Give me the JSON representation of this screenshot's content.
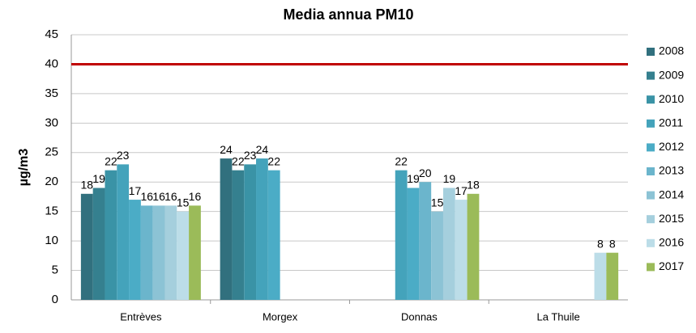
{
  "chart_data": {
    "type": "bar",
    "title": "Media annua PM10",
    "y_label": "µg/m3",
    "categories": [
      "Entrèves",
      "Morgex",
      "Donnas",
      "La Thuile"
    ],
    "series": [
      {
        "name": "2008",
        "color": "#31707e",
        "values": [
          18,
          24,
          null,
          null
        ]
      },
      {
        "name": "2009",
        "color": "#35808f",
        "values": [
          19,
          22,
          null,
          null
        ]
      },
      {
        "name": "2010",
        "color": "#3a93a6",
        "values": [
          22,
          23,
          null,
          null
        ]
      },
      {
        "name": "2011",
        "color": "#44a3bb",
        "values": [
          23,
          24,
          22,
          null
        ]
      },
      {
        "name": "2012",
        "color": "#4bacc6",
        "values": [
          17,
          22,
          19,
          null
        ]
      },
      {
        "name": "2013",
        "color": "#6bb5cc",
        "values": [
          16,
          null,
          20,
          null
        ]
      },
      {
        "name": "2014",
        "color": "#8cc3d5",
        "values": [
          16,
          null,
          15,
          null
        ]
      },
      {
        "name": "2015",
        "color": "#a5cfdd",
        "values": [
          16,
          null,
          19,
          null
        ]
      },
      {
        "name": "2016",
        "color": "#bcdde8",
        "values": [
          15,
          null,
          17,
          8
        ]
      },
      {
        "name": "2017",
        "color": "#9bbb59",
        "values": [
          16,
          null,
          18,
          8
        ]
      }
    ],
    "threshold": 40,
    "threshold_color": "#c00000",
    "ylim": [
      0,
      45
    ],
    "yticks": [
      0,
      5,
      10,
      15,
      20,
      25,
      30,
      35,
      40,
      45
    ],
    "grid": true,
    "legend": "right"
  }
}
